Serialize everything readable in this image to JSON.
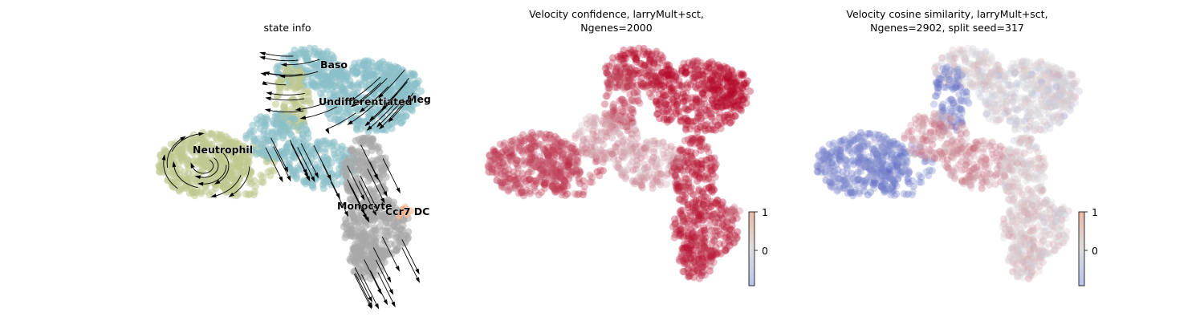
{
  "chart_data": [
    {
      "type": "scatter",
      "title": "state info",
      "embedding": "umap",
      "arrows": "velocity streamlines",
      "point_color": "cluster",
      "clusters": [
        {
          "name": "Baso",
          "color": "#8bc0c8"
        },
        {
          "name": "Meg",
          "color": "#8bc0c8"
        },
        {
          "name": "Undifferentiated",
          "color": "#8bc0c8"
        },
        {
          "name": "Neutrophil",
          "color": "#c0c98f"
        },
        {
          "name": "Monocyte",
          "color": "#a8a8a8"
        },
        {
          "name": "Ccr7 DC",
          "color": "#f3b08a"
        }
      ]
    },
    {
      "type": "scatter",
      "title_lines": [
        "Velocity confidence, larryMult+sct,",
        "Ngenes=2000"
      ],
      "point_color": "velocity confidence",
      "colormap": "coolwarm",
      "colorbar": {
        "ticks": [
          "1",
          "0"
        ]
      },
      "region_values": {
        "Neutrophil": 0.7,
        "Undifferentiated": 0.95,
        "Meg": 0.98,
        "Baso": 0.9,
        "Monocyte": 0.85,
        "center": 0.3
      }
    },
    {
      "type": "scatter",
      "title_lines": [
        "Velocity cosine similarity, larryMult+sct,",
        "Ngenes=2902, split seed=317"
      ],
      "point_color": "velocity cosine similarity",
      "colormap": "coolwarm",
      "colorbar": {
        "ticks": [
          "1",
          "0"
        ]
      },
      "region_values": {
        "Neutrophil": -0.6,
        "Undifferentiated": 0.0,
        "Meg": 0.0,
        "Baso": 0.05,
        "Monocyte": 0.1,
        "center": 0.35
      }
    }
  ],
  "colors": {
    "undifferentiated": "#8bc0c8",
    "neutrophil": "#c0c98f",
    "monocyte": "#a8a8a8",
    "ccr7_dc": "#f3b08a",
    "stream": "#000000"
  }
}
